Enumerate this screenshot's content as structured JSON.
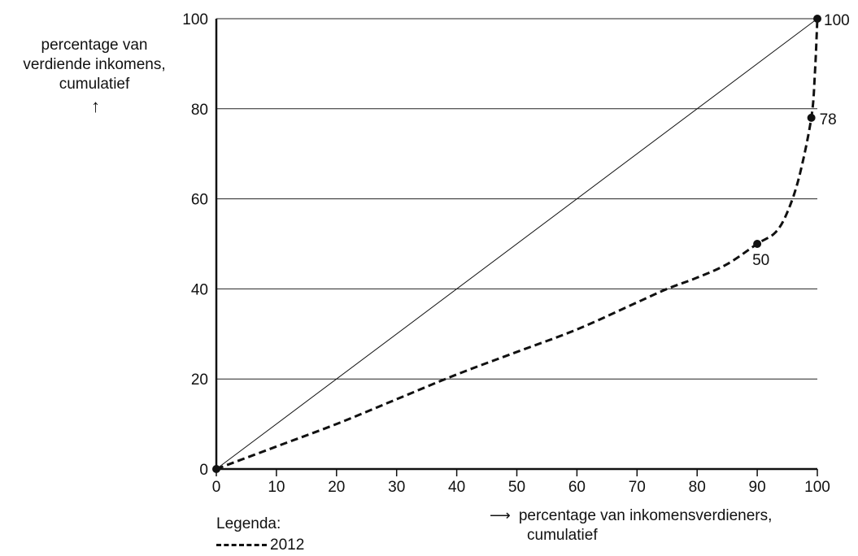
{
  "chart_data": {
    "type": "line",
    "title": "",
    "ylabel_lines": [
      "percentage van",
      "verdiende inkomens,",
      "cumulatief"
    ],
    "ylabel_arrow": "↑",
    "xlabel_lines": [
      "percentage van inkomensverdieners,",
      "cumulatief"
    ],
    "xlabel_arrow": "⟶",
    "xlim": [
      0,
      100
    ],
    "ylim": [
      0,
      100
    ],
    "x_ticks": [
      0,
      10,
      20,
      30,
      40,
      50,
      60,
      70,
      80,
      90,
      100
    ],
    "y_ticks": [
      0,
      20,
      40,
      60,
      80,
      100
    ],
    "grid": "horizontal",
    "legend_title": "Legenda:",
    "legend_placement": "bottom-left",
    "series": [
      {
        "name": "2012",
        "style": "dashed",
        "color": "#111111",
        "points": [
          [
            0,
            0
          ],
          [
            10,
            5
          ],
          [
            20,
            10
          ],
          [
            30,
            15.5
          ],
          [
            40,
            21
          ],
          [
            50,
            26
          ],
          [
            60,
            31
          ],
          [
            70,
            37
          ],
          [
            75,
            40
          ],
          [
            80,
            42.5
          ],
          [
            85,
            45.5
          ],
          [
            90,
            50
          ],
          [
            93,
            52.5
          ],
          [
            95,
            57
          ],
          [
            97,
            65
          ],
          [
            99,
            78
          ],
          [
            99.6,
            88
          ],
          [
            100,
            100
          ]
        ]
      },
      {
        "name": "",
        "style": "solid",
        "color": "#111111",
        "points": [
          [
            0,
            0
          ],
          [
            100,
            100
          ]
        ]
      }
    ],
    "annotations": [
      {
        "x": 0,
        "y": 0,
        "label": ""
      },
      {
        "x": 90,
        "y": 50,
        "label": "50"
      },
      {
        "x": 99,
        "y": 78,
        "label": "78"
      },
      {
        "x": 100,
        "y": 100,
        "label": "100"
      }
    ]
  }
}
